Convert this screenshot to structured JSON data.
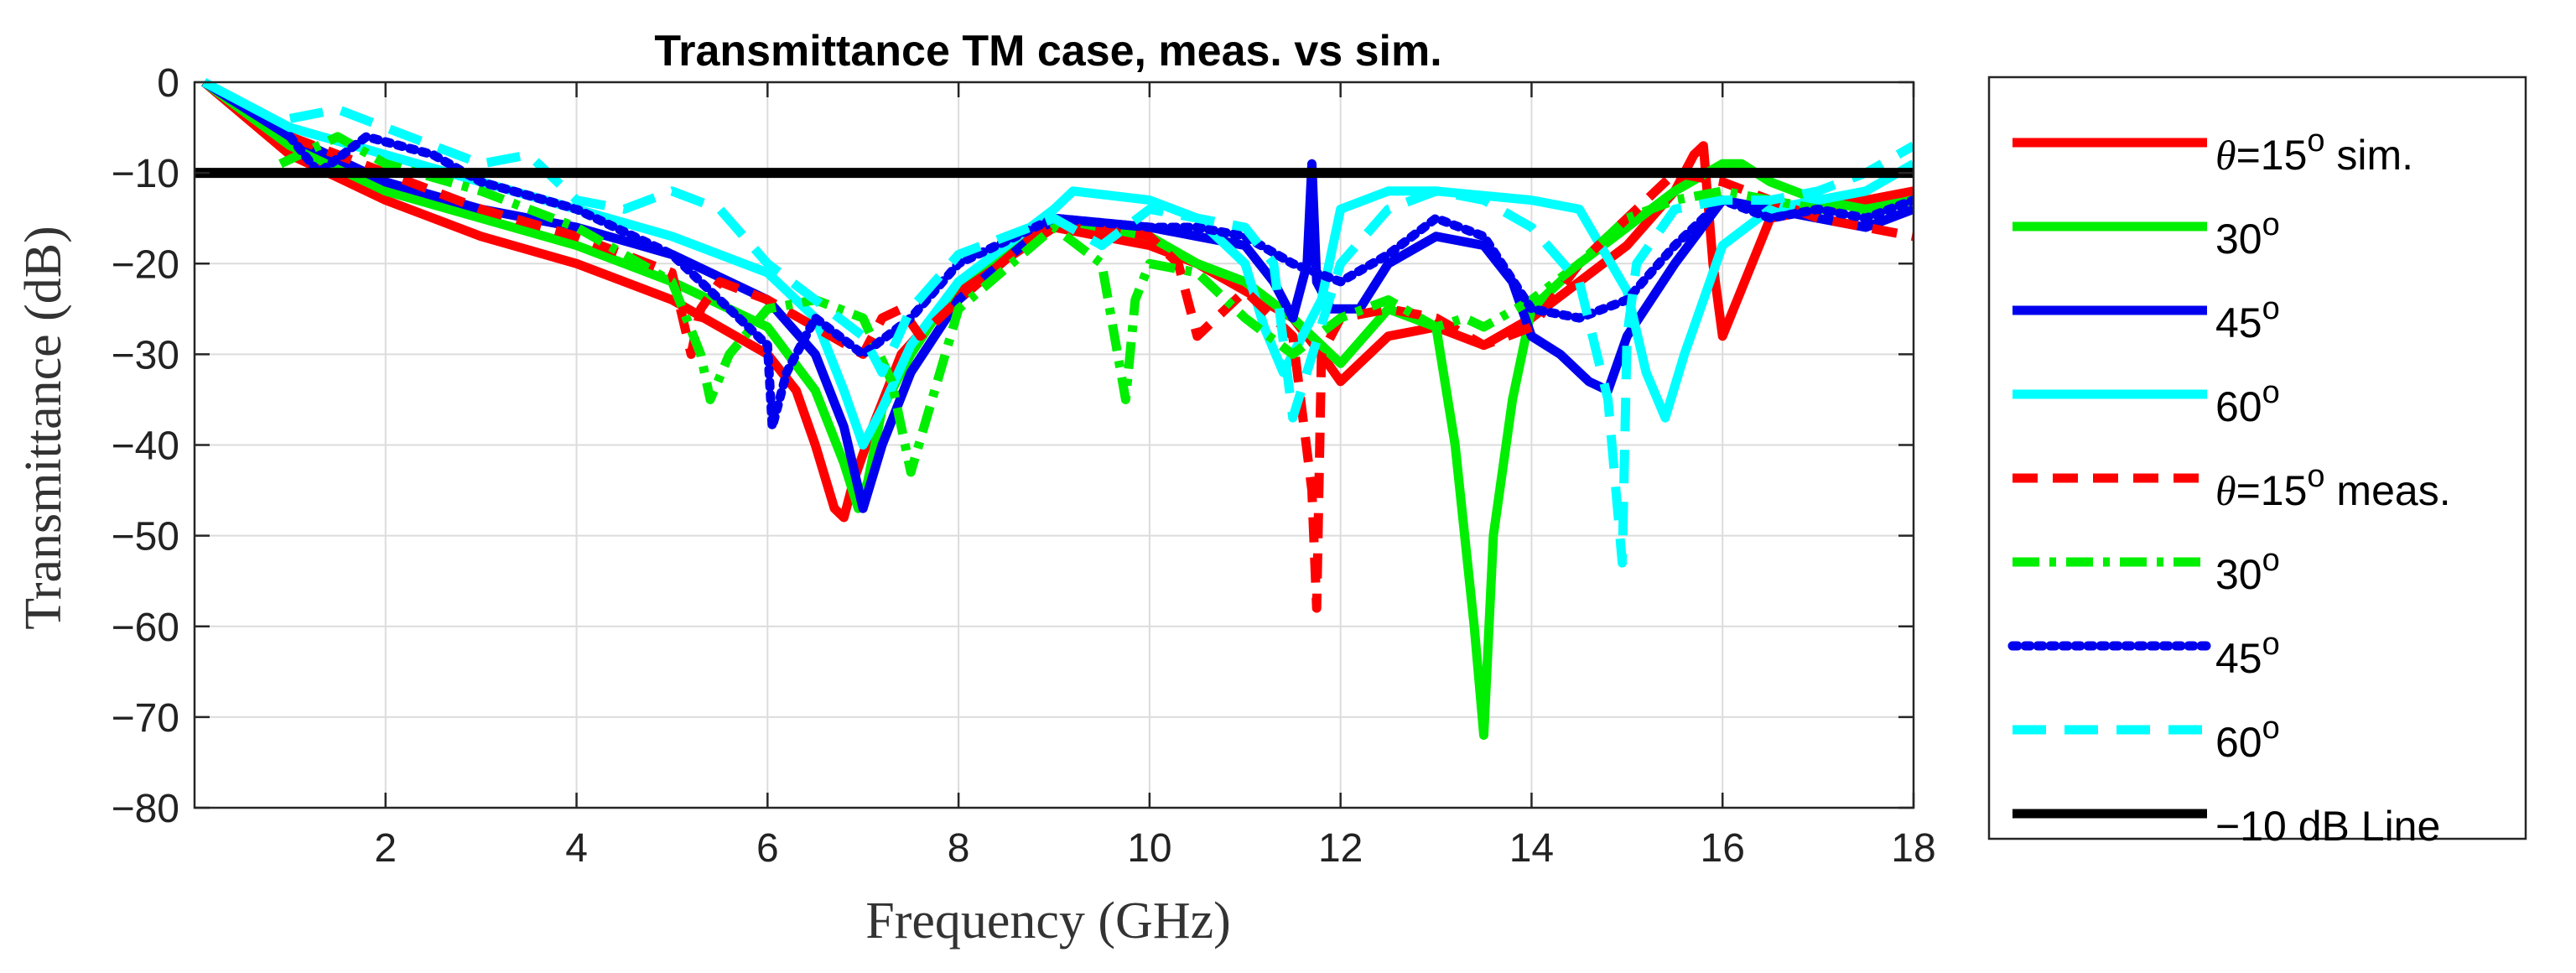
{
  "chart_data": {
    "type": "line",
    "title": "Transmittance TM case, meas. vs sim.",
    "xlabel": "Frequency (GHz)",
    "ylabel": "Transmittance (dB)",
    "xlim": [
      0,
      18
    ],
    "ylim": [
      -80,
      0
    ],
    "xticks": [
      2,
      4,
      6,
      8,
      10,
      12,
      14,
      16,
      18
    ],
    "xtick_labels": [
      "2",
      "4",
      "6",
      "8",
      "10",
      "12",
      "14",
      "16",
      "18"
    ],
    "yticks": [
      0,
      -10,
      -20,
      -30,
      -40,
      -50,
      -60,
      -70,
      -80
    ],
    "ytick_labels": [
      "0",
      "−10",
      "−20",
      "−30",
      "−40",
      "−50",
      "−60",
      "−70",
      "−80"
    ],
    "grid": true,
    "legend_position": "outside-right",
    "series": [
      {
        "id": "sim15",
        "name": "θ=15° sim.",
        "legend_prefix": "θ",
        "legend_text": "=15",
        "legend_sup": "o",
        "legend_suffix": " sim.",
        "color": "#ff0000",
        "style": "solid",
        "x": [
          0.1,
          1,
          2,
          3,
          4,
          5,
          5.5,
          6,
          6.3,
          6.5,
          6.7,
          6.8,
          6.9,
          7.1,
          7.4,
          8,
          9,
          10,
          10.5,
          11,
          11.5,
          11.8,
          12,
          12.5,
          13,
          13.5,
          14,
          14.5,
          15,
          15.5,
          15.7,
          15.8,
          15.9,
          16,
          16.5,
          17,
          17.5,
          18
        ],
        "y": [
          0,
          -8,
          -13,
          -17,
          -20,
          -24,
          -27,
          -30,
          -34,
          -40,
          -47,
          -48,
          -44,
          -38,
          -30,
          -23,
          -16,
          -18,
          -20,
          -23,
          -26,
          -30,
          -33,
          -28,
          -27,
          -29,
          -26,
          -22,
          -18,
          -12,
          -8,
          -7,
          -20,
          -28,
          -15,
          -14,
          -13,
          -12
        ]
      },
      {
        "id": "sim30",
        "name": "30°",
        "legend_text": "30",
        "legend_sup": "o",
        "legend_suffix": "",
        "color": "#00ee00",
        "style": "solid",
        "x": [
          0.1,
          1,
          2,
          3,
          4,
          5,
          6,
          6.5,
          6.8,
          6.95,
          7.05,
          7.2,
          7.5,
          8,
          9,
          10,
          10.5,
          11,
          11.5,
          12,
          12.5,
          13,
          13.2,
          13.4,
          13.5,
          13.6,
          13.8,
          14,
          14.5,
          15,
          15.5,
          16,
          16.2,
          16.5,
          17,
          17.5,
          18
        ],
        "y": [
          0,
          -7,
          -12,
          -15,
          -18,
          -22,
          -27,
          -34,
          -42,
          -47,
          -44,
          -36,
          -30,
          -22,
          -15,
          -17,
          -20,
          -22,
          -26,
          -31,
          -25,
          -27,
          -40,
          -60,
          -72,
          -50,
          -35,
          -25,
          -20,
          -16,
          -12,
          -9,
          -9,
          -11,
          -13,
          -14,
          -13
        ]
      },
      {
        "id": "sim45",
        "name": "45°",
        "legend_text": "45",
        "legend_sup": "o",
        "legend_suffix": "",
        "color": "#0000ee",
        "style": "solid",
        "x": [
          0.1,
          1,
          2,
          3,
          4,
          5,
          6,
          6.5,
          6.8,
          7,
          7.2,
          7.5,
          8,
          9,
          10,
          10.5,
          11,
          11.3,
          11.5,
          11.65,
          11.7,
          11.75,
          11.9,
          12.2,
          12.5,
          13,
          13.5,
          13.8,
          14,
          14.3,
          14.6,
          14.8,
          15,
          15.5,
          16,
          16.5,
          17,
          17.5,
          18
        ],
        "y": [
          0,
          -6,
          -11,
          -14,
          -16,
          -19,
          -24,
          -30,
          -38,
          -47,
          -40,
          -32,
          -24,
          -15,
          -16,
          -17,
          -18,
          -22,
          -26,
          -20,
          -9,
          -22,
          -25,
          -25,
          -20,
          -17,
          -18,
          -22,
          -28,
          -30,
          -33,
          -34,
          -28,
          -20,
          -13,
          -14,
          -15,
          -16,
          -14
        ]
      },
      {
        "id": "sim60",
        "name": "60°",
        "legend_text": "60",
        "legend_sup": "o",
        "legend_suffix": "",
        "color": "#00ffff",
        "style": "solid",
        "x": [
          0.1,
          1,
          2,
          3,
          4,
          5,
          6,
          6.5,
          6.8,
          7.0,
          7.2,
          7.5,
          8,
          9,
          9.2,
          10,
          10.5,
          11,
          11.2,
          11.4,
          11.8,
          12,
          12.5,
          13,
          13.5,
          14,
          14.5,
          15,
          15.2,
          15.4,
          15.6,
          16,
          16.5,
          17,
          17.5,
          18
        ],
        "y": [
          0,
          -5,
          -8,
          -11,
          -14,
          -17,
          -21,
          -26,
          -34,
          -40,
          -36,
          -29,
          -22,
          -14,
          -12,
          -13,
          -15,
          -20,
          -27,
          -32,
          -24,
          -14,
          -12,
          -12,
          -12.5,
          -13,
          -14,
          -23,
          -32,
          -37,
          -30,
          -18,
          -14,
          -13,
          -12,
          -9
        ]
      },
      {
        "id": "meas15",
        "name": "θ=15° meas.",
        "legend_prefix": "θ",
        "legend_text": "=15",
        "legend_sup": "o",
        "legend_suffix": " meas.",
        "color": "#ff0000",
        "style": "dashed",
        "x": [
          1,
          2,
          3,
          4,
          5,
          5.2,
          5.3,
          5.5,
          6,
          6.5,
          7,
          7.2,
          7.4,
          7.6,
          8,
          9,
          10,
          10.3,
          10.5,
          11,
          11.5,
          11.7,
          11.75,
          11.8,
          12,
          12.5,
          13,
          13.5,
          14,
          14.5,
          15,
          15.5,
          16,
          16.5,
          17,
          17.5,
          18
        ],
        "y": [
          -6,
          -10,
          -14,
          -17,
          -21,
          -30,
          -25,
          -22,
          -24,
          -27,
          -30,
          -26,
          -25,
          -28,
          -24,
          -15,
          -17,
          -20,
          -28,
          -23,
          -28,
          -45,
          -58,
          -30,
          -26,
          -25,
          -26,
          -29,
          -27,
          -20,
          -15,
          -10,
          -11,
          -13,
          -15,
          -16,
          -17
        ]
      },
      {
        "id": "meas30",
        "name": "30°",
        "legend_text": "30",
        "legend_sup": "o",
        "legend_suffix": "",
        "color": "#00ee00",
        "style": "dashdot",
        "x": [
          0.9,
          1.5,
          2,
          3,
          4,
          5,
          5.3,
          5.4,
          5.6,
          6,
          6.5,
          7,
          7.3,
          7.5,
          8,
          9,
          9.5,
          9.75,
          9.85,
          10,
          10.5,
          11,
          11.5,
          12,
          12.5,
          13,
          13.3,
          13.5,
          14,
          14.5,
          15,
          15.5,
          16,
          16.5,
          17,
          17.5,
          18
        ],
        "y": [
          -9,
          -6,
          -9,
          -12,
          -16,
          -22,
          -30,
          -35,
          -30,
          -25,
          -24,
          -26,
          -33,
          -43,
          -25,
          -16,
          -20,
          -35,
          -24,
          -20,
          -21,
          -26,
          -30,
          -26,
          -24,
          -27,
          -26,
          -27,
          -24,
          -20,
          -15,
          -13,
          -12,
          -13,
          -14,
          -14,
          -13
        ]
      },
      {
        "id": "meas45",
        "name": "45°",
        "legend_text": "45",
        "legend_sup": "o",
        "legend_suffix": "",
        "color": "#0000ee",
        "style": "dotted",
        "x": [
          1,
          1.3,
          1.8,
          2.5,
          3,
          4,
          5,
          5.5,
          6,
          6.05,
          6.2,
          6.5,
          7,
          7.5,
          8,
          9,
          10,
          10.5,
          11,
          11.5,
          12,
          12.5,
          13,
          13.5,
          14,
          14.5,
          15,
          15.5,
          16,
          16.5,
          17,
          17.5,
          18
        ],
        "y": [
          -6,
          -10,
          -6,
          -8,
          -11,
          -14,
          -19,
          -24,
          -29,
          -38,
          -32,
          -26,
          -30,
          -26,
          -20,
          -15,
          -16,
          -16,
          -17,
          -20,
          -22,
          -19,
          -15,
          -17,
          -25,
          -26,
          -24,
          -18,
          -13,
          -15,
          -14,
          -15,
          -13
        ]
      },
      {
        "id": "meas60",
        "name": "60°",
        "legend_text": "60",
        "legend_sup": "o",
        "legend_suffix": "",
        "color": "#00ffff",
        "style": "longdash",
        "x": [
          1,
          1.5,
          2,
          2.5,
          3,
          3.5,
          4,
          4.5,
          5,
          5.5,
          6,
          6.5,
          7,
          7.2,
          7.5,
          8,
          9,
          9.5,
          10,
          10.5,
          11,
          11.3,
          11.5,
          12,
          12.5,
          13,
          13.5,
          14,
          14.5,
          14.8,
          14.95,
          15.0,
          15.1,
          15.5,
          16,
          16.5,
          17,
          17.5,
          18
        ],
        "y": [
          -4,
          -3,
          -5,
          -7,
          -9,
          -8,
          -13,
          -14,
          -12,
          -14,
          -20,
          -24,
          -28,
          -32,
          -25,
          -19,
          -15,
          -18,
          -14,
          -15,
          -16,
          -20,
          -37,
          -20,
          -14,
          -12,
          -13,
          -16,
          -22,
          -35,
          -53,
          -28,
          -20,
          -14,
          -13,
          -13,
          -12,
          -10,
          -7
        ]
      },
      {
        "id": "ref10",
        "name": "−10 dB Line",
        "legend_text": "−10 dB Line",
        "legend_sup": "",
        "legend_suffix": "",
        "color": "#000000",
        "style": "solid",
        "x": [
          0,
          18
        ],
        "y": [
          -10,
          -10
        ]
      }
    ]
  }
}
